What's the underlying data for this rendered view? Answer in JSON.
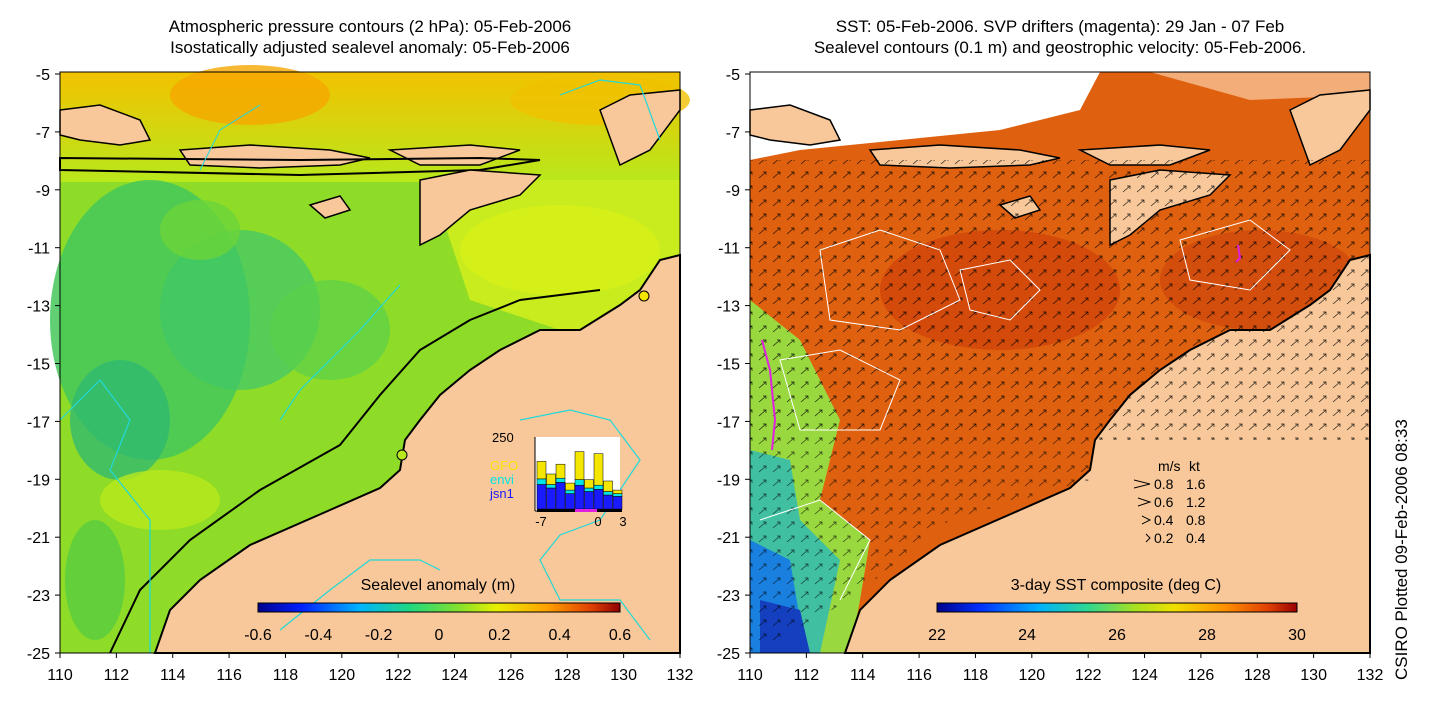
{
  "left_panel": {
    "title_line1": "Atmospheric pressure contours (2 hPa): 05-Feb-2006",
    "title_line2": "Isostatically adjusted sealevel anomaly: 05-Feb-2006",
    "y_ticks": [
      "-5",
      "-7",
      "-9",
      "-11",
      "-13",
      "-15",
      "-17",
      "-19",
      "-21",
      "-23",
      "-25"
    ],
    "x_ticks": [
      "110",
      "112",
      "114",
      "116",
      "118",
      "120",
      "122",
      "124",
      "126",
      "128",
      "130",
      "132"
    ],
    "colorbar": {
      "label": "Sealevel anomaly (m)",
      "ticks": [
        "-0.6",
        "-0.4",
        "-0.2",
        "0",
        "0.2",
        "0.4",
        "0.6"
      ]
    },
    "inset_histogram": {
      "y_max_label": "250",
      "x_ticks": [
        "-7",
        "0",
        "3"
      ],
      "legend": [
        {
          "label": "GFO",
          "color": "#f5e600"
        },
        {
          "label": "envi",
          "color": "#00e5e5"
        },
        {
          "label": "jsn1",
          "color": "#1a1aff"
        }
      ],
      "bars": [
        {
          "yellow": 0.25,
          "cyan": 0.08,
          "blue": 0.35
        },
        {
          "yellow": 0.15,
          "cyan": 0.05,
          "blue": 0.3
        },
        {
          "yellow": 0.2,
          "cyan": 0.06,
          "blue": 0.38
        },
        {
          "yellow": 0.1,
          "cyan": 0.05,
          "blue": 0.22
        },
        {
          "yellow": 0.4,
          "cyan": 0.08,
          "blue": 0.34
        },
        {
          "yellow": 0.12,
          "cyan": 0.05,
          "blue": 0.25
        },
        {
          "yellow": 0.45,
          "cyan": 0.06,
          "blue": 0.28
        },
        {
          "yellow": 0.15,
          "cyan": 0.05,
          "blue": 0.2
        },
        {
          "yellow": 0.05,
          "cyan": 0.04,
          "blue": 0.18
        }
      ]
    }
  },
  "right_panel": {
    "title_line1": "SST: 05-Feb-2006. SVP drifters (magenta): 29 Jan - 07 Feb",
    "title_line2": "Sealevel contours (0.1 m) and geostrophic velocity: 05-Feb-2006.",
    "y_ticks": [
      "-5",
      "-7",
      "-9",
      "-11",
      "-13",
      "-15",
      "-17",
      "-19",
      "-21",
      "-23",
      "-25"
    ],
    "x_ticks": [
      "110",
      "112",
      "114",
      "116",
      "118",
      "120",
      "122",
      "124",
      "126",
      "128",
      "130",
      "132"
    ],
    "colorbar": {
      "label": "3-day SST composite (deg C)",
      "ticks": [
        "22",
        "24",
        "26",
        "28",
        "30"
      ]
    },
    "velocity_legend": {
      "header_ms": "m/s",
      "header_kt": "kt",
      "rows": [
        {
          "ms": "0.8",
          "kt": "1.6"
        },
        {
          "ms": "0.6",
          "kt": "1.2"
        },
        {
          "ms": "0.4",
          "kt": "0.8"
        },
        {
          "ms": "0.2",
          "kt": "0.4"
        }
      ]
    }
  },
  "credit": "CSIRO Plotted 09-Feb-2006 08:33",
  "colors": {
    "land": "#f9c89a",
    "left_sea": "#7ddc2c",
    "right_sea": "#e06010"
  }
}
